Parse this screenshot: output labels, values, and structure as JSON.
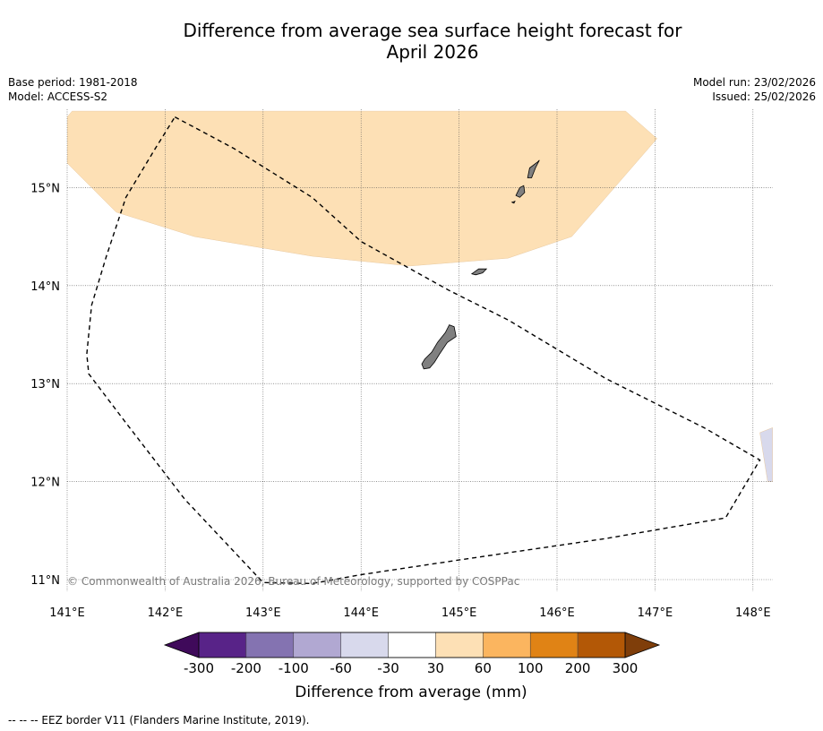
{
  "title_line1": "Difference from average sea surface height forecast for",
  "title_line2": "April 2026",
  "meta_left": [
    "Base period: 1981-2018",
    "Model: ACCESS-S2"
  ],
  "meta_right": [
    "Model run: 23/02/2026",
    "Issued: 25/02/2026"
  ],
  "copyright": "© Commonwealth of Australia 2026, Bureau of Meteorology, supported by COSPPac",
  "footer": "--  --  -- EEZ border V11 (Flanders Marine Institute, 2019).",
  "map": {
    "lon_range": [
      141.0,
      148.2
    ],
    "lat_range": [
      10.8,
      15.8
    ],
    "lon_ticks": [
      {
        "value": 141,
        "label": "141°E"
      },
      {
        "value": 142,
        "label": "142°E"
      },
      {
        "value": 143,
        "label": "143°E"
      },
      {
        "value": 144,
        "label": "144°E"
      },
      {
        "value": 145,
        "label": "145°E"
      },
      {
        "value": 146,
        "label": "146°E"
      },
      {
        "value": 147,
        "label": "147°E"
      },
      {
        "value": 148,
        "label": "148°E"
      }
    ],
    "lat_ticks": [
      {
        "value": 15,
        "label": "15°N"
      },
      {
        "value": 14,
        "label": "14°N"
      },
      {
        "value": 13,
        "label": "13°N"
      },
      {
        "value": 12,
        "label": "12°N"
      },
      {
        "value": 11,
        "label": "11°N"
      }
    ],
    "anomaly_regions": [
      {
        "category": "30 to 60",
        "color": "#fde0b5",
        "points": [
          [
            141.0,
            15.72
          ],
          [
            141.05,
            15.78
          ],
          [
            146.7,
            15.78
          ],
          [
            147.02,
            15.5
          ],
          [
            146.5,
            14.9
          ],
          [
            146.15,
            14.5
          ],
          [
            145.5,
            14.28
          ],
          [
            144.5,
            14.2
          ],
          [
            143.5,
            14.3
          ],
          [
            142.3,
            14.5
          ],
          [
            141.5,
            14.75
          ],
          [
            141.0,
            15.25
          ]
        ]
      },
      {
        "category": "-60 to -30",
        "color": "#d8d9ec",
        "points": [
          [
            148.07,
            12.5
          ],
          [
            148.2,
            12.55
          ],
          [
            148.2,
            12.0
          ],
          [
            148.15,
            12.0
          ]
        ]
      }
    ],
    "islands": [
      {
        "name": "Guam",
        "points": [
          [
            144.62,
            13.2
          ],
          [
            144.65,
            13.25
          ],
          [
            144.72,
            13.32
          ],
          [
            144.78,
            13.42
          ],
          [
            144.86,
            13.52
          ],
          [
            144.9,
            13.6
          ],
          [
            144.95,
            13.58
          ],
          [
            144.97,
            13.48
          ],
          [
            144.88,
            13.42
          ],
          [
            144.8,
            13.3
          ],
          [
            144.75,
            13.22
          ],
          [
            144.7,
            13.16
          ],
          [
            144.64,
            13.15
          ]
        ]
      },
      {
        "name": "Rota",
        "points": [
          [
            145.13,
            14.12
          ],
          [
            145.2,
            14.17
          ],
          [
            145.28,
            14.17
          ],
          [
            145.24,
            14.13
          ],
          [
            145.17,
            14.11
          ]
        ]
      },
      {
        "name": "Tinian",
        "points": [
          [
            145.58,
            14.92
          ],
          [
            145.62,
            15.0
          ],
          [
            145.66,
            15.02
          ],
          [
            145.67,
            14.95
          ],
          [
            145.62,
            14.9
          ]
        ]
      },
      {
        "name": "Saipan",
        "points": [
          [
            145.7,
            15.1
          ],
          [
            145.72,
            15.2
          ],
          [
            145.8,
            15.26
          ],
          [
            145.82,
            15.28
          ],
          [
            145.78,
            15.2
          ],
          [
            145.74,
            15.1
          ]
        ]
      },
      {
        "name": "Aguijan",
        "points": [
          [
            145.54,
            14.85
          ],
          [
            145.57,
            14.86
          ],
          [
            145.56,
            14.84
          ]
        ]
      }
    ],
    "eez_border": [
      [
        142.1,
        15.72
      ],
      [
        142.7,
        15.4
      ],
      [
        143.5,
        14.9
      ],
      [
        144.0,
        14.45
      ],
      [
        144.9,
        13.95
      ],
      [
        145.5,
        13.65
      ],
      [
        146.5,
        13.05
      ],
      [
        147.5,
        12.55
      ],
      [
        148.07,
        12.22
      ],
      [
        147.72,
        11.63
      ],
      [
        146.5,
        11.42
      ],
      [
        145.0,
        11.2
      ],
      [
        144.0,
        11.05
      ],
      [
        143.5,
        10.96
      ],
      [
        143.0,
        10.97
      ],
      [
        142.2,
        11.82
      ],
      [
        141.6,
        12.6
      ],
      [
        141.22,
        13.1
      ],
      [
        141.2,
        13.3
      ],
      [
        141.25,
        13.8
      ],
      [
        141.4,
        14.3
      ],
      [
        141.6,
        14.9
      ],
      [
        141.9,
        15.4
      ],
      [
        142.1,
        15.72
      ]
    ]
  },
  "colorbar": {
    "label": "Difference from average (mm)",
    "under_color": "#3f0a5a",
    "over_color": "#7f3e0a",
    "bins": [
      {
        "color": "#582388"
      },
      {
        "color": "#8473b1"
      },
      {
        "color": "#b1a8d2"
      },
      {
        "color": "#d8d9ec"
      },
      {
        "color": "#ffffff"
      },
      {
        "color": "#fde0b5"
      },
      {
        "color": "#fbb55f"
      },
      {
        "color": "#e08315"
      },
      {
        "color": "#b35806"
      }
    ],
    "tick_labels": [
      "-300",
      "-200",
      "-100",
      "-60",
      "-30",
      "30",
      "60",
      "100",
      "200",
      "300"
    ]
  }
}
